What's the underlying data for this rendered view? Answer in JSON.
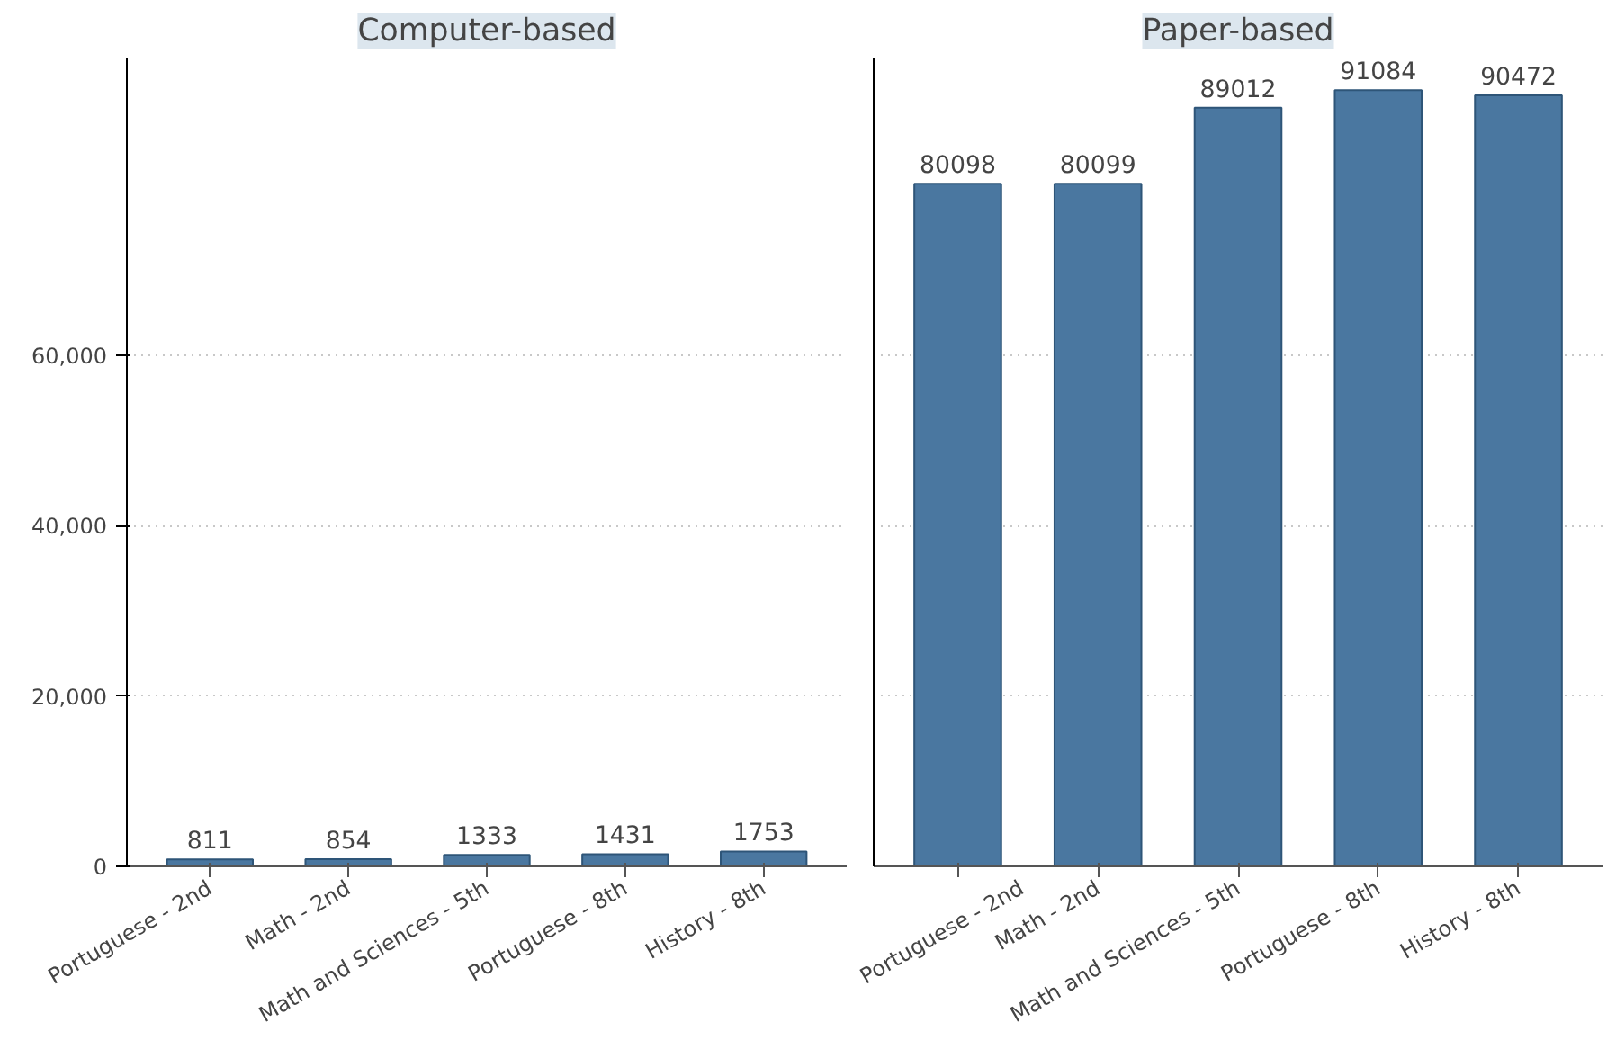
{
  "chart_data": [
    {
      "type": "bar",
      "title": "Computer-based",
      "categories": [
        "Portuguese - 2nd",
        "Math - 2nd",
        "Math and Sciences - 5th",
        "Portuguese - 8th",
        "History - 8th"
      ],
      "values": [
        811,
        854,
        1333,
        1431,
        1753
      ],
      "color": "#4a77a0",
      "data_labels": true,
      "ylim": [
        0,
        94800
      ],
      "yticks": [
        0,
        {
          "value": 20000,
          "label": "20,000"
        },
        {
          "value": 40000,
          "label": "40,000"
        },
        {
          "value": 60000,
          "label": "60,000"
        }
      ],
      "grid": "y"
    },
    {
      "type": "bar",
      "title": "Paper-based",
      "categories": [
        "Portuguese - 2nd",
        "Math - 2nd",
        "Math and Sciences - 5th",
        "Portuguese - 8th",
        "History - 8th"
      ],
      "values": [
        80098,
        80099,
        89012,
        91084,
        90472
      ],
      "color": "#4a77a0",
      "data_labels": true,
      "ylim": [
        0,
        94800
      ],
      "yticks": [
        0,
        20000,
        40000,
        60000
      ],
      "grid": "y",
      "tick_labels": "x"
    }
  ]
}
